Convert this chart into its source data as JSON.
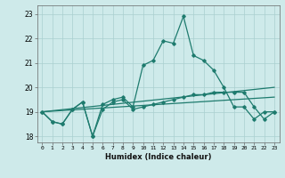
{
  "title": "",
  "xlabel": "Humidex (Indice chaleur)",
  "ylabel": "",
  "xlim": [
    -0.5,
    23.5
  ],
  "ylim": [
    17.75,
    23.35
  ],
  "yticks": [
    18,
    19,
    20,
    21,
    22,
    23
  ],
  "xticks": [
    0,
    1,
    2,
    3,
    4,
    5,
    6,
    7,
    8,
    9,
    10,
    11,
    12,
    13,
    14,
    15,
    16,
    17,
    18,
    19,
    20,
    21,
    22,
    23
  ],
  "xtick_labels": [
    "0",
    "1",
    "2",
    "3",
    "4",
    "5",
    "6",
    "7",
    "8",
    "9",
    "10",
    "11",
    "12",
    "13",
    "14",
    "15",
    "16",
    "17",
    "18",
    "19",
    "20",
    "21",
    "22",
    "23"
  ],
  "bg_color": "#ceeaea",
  "grid_color": "#aacfcf",
  "line_color": "#1e7b6e",
  "line1_x": [
    0,
    1,
    2,
    3,
    4,
    5,
    6,
    7,
    8,
    9,
    10,
    11,
    12,
    13,
    14,
    15,
    16,
    17,
    18,
    19,
    20,
    21,
    22,
    23
  ],
  "line1_y": [
    19.0,
    18.6,
    18.5,
    19.1,
    19.4,
    18.0,
    19.3,
    19.5,
    19.6,
    19.2,
    20.9,
    21.1,
    21.9,
    21.8,
    22.9,
    21.3,
    21.1,
    20.7,
    20.0,
    19.2,
    19.2,
    18.7,
    19.0,
    19.0
  ],
  "line2_x": [
    0,
    1,
    2,
    3,
    4,
    5,
    6,
    7,
    8,
    9,
    10,
    11,
    12,
    13,
    14,
    15,
    16,
    17,
    18,
    19,
    20,
    21,
    22,
    23
  ],
  "line2_y": [
    19.0,
    18.6,
    18.5,
    19.1,
    19.4,
    18.0,
    19.1,
    19.4,
    19.5,
    19.1,
    19.2,
    19.3,
    19.4,
    19.5,
    19.6,
    19.7,
    19.7,
    19.8,
    19.8,
    19.8,
    19.8,
    19.2,
    18.7,
    19.0
  ],
  "line3_x": [
    0,
    23
  ],
  "line3_y": [
    19.0,
    20.0
  ],
  "line4_x": [
    0,
    23
  ],
  "line4_y": [
    19.0,
    19.6
  ]
}
